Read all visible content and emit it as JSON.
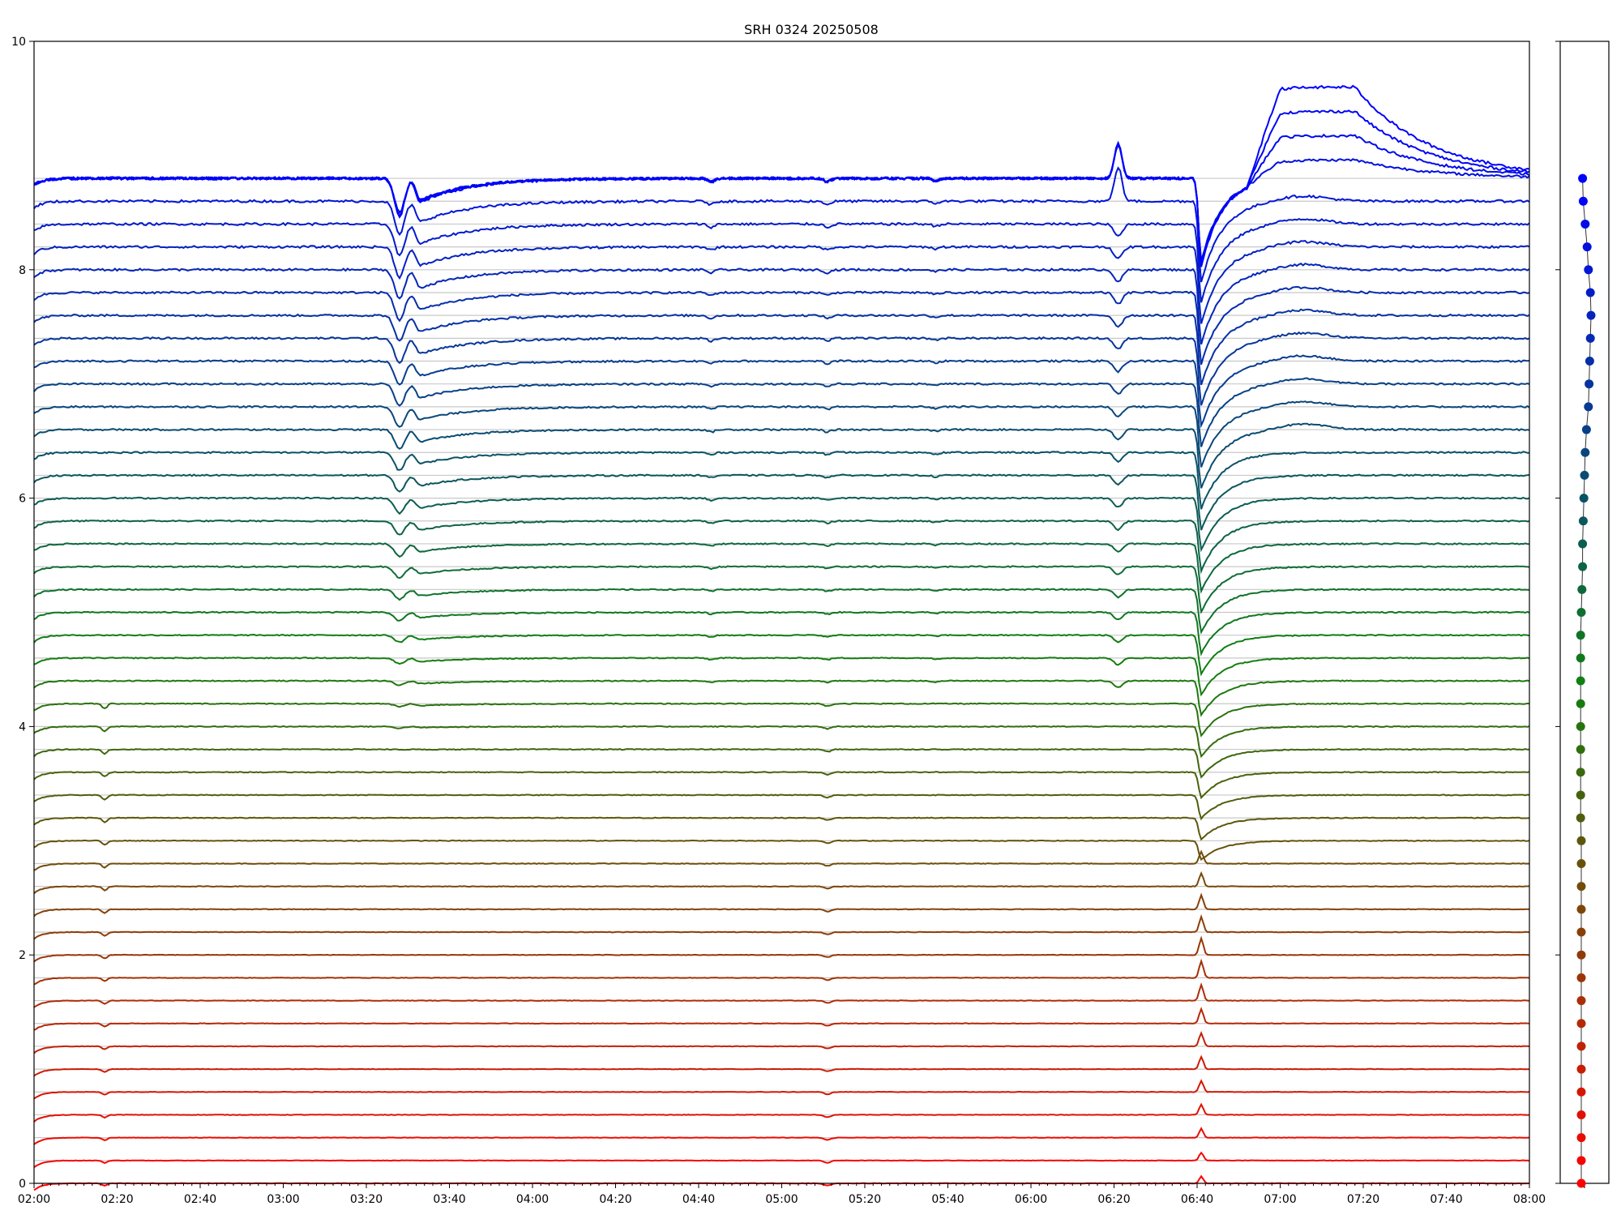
{
  "chart_data": [
    {
      "type": "line",
      "title": "SRH 0324 20250508",
      "xlabel": "",
      "ylabel": "",
      "x_tick_labels": [
        "02:00",
        "02:20",
        "02:40",
        "03:00",
        "03:20",
        "03:40",
        "04:00",
        "04:20",
        "04:40",
        "05:00",
        "05:20",
        "05:40",
        "06:00",
        "06:20",
        "06:40",
        "07:00",
        "07:20",
        "07:40",
        "08:00"
      ],
      "y_tick_labels": [
        "0",
        "2",
        "4",
        "6",
        "8",
        "10"
      ],
      "y_ticks": [
        0,
        2,
        4,
        6,
        8,
        10
      ],
      "xlim_minutes": [
        0,
        360
      ],
      "ylim": [
        0,
        10
      ],
      "grid": "horizontal baseline per channel",
      "legend": "none",
      "channel_count": 48,
      "channel_offsets": [
        0.0,
        0.2,
        0.4,
        0.6,
        0.8,
        1.0,
        1.2,
        1.4,
        1.6,
        1.8,
        2.0,
        2.2,
        2.4,
        2.6,
        2.8,
        3.0,
        3.2,
        3.4,
        3.6,
        3.8,
        4.0,
        4.2,
        4.4,
        4.6,
        4.8,
        5.0,
        5.2,
        5.4,
        5.6,
        5.8,
        6.0,
        6.2,
        6.4,
        6.6,
        6.8,
        7.0,
        7.2,
        7.4,
        7.6,
        7.8,
        8.0,
        8.2,
        8.4,
        8.6,
        8.8,
        8.8,
        8.8,
        8.8
      ],
      "color_start": "#ff0000",
      "color_end": "#0000ff",
      "events_minutes": {
        "dip_0217": 17,
        "dip_0328": 88,
        "dip_0333": 93,
        "dip_0443": 163,
        "dip_0511": 191,
        "dip_0537": 217,
        "spike_0621": 261,
        "burst_0641": 281,
        "rise_0705_peak": 305,
        "end_0800": 360
      }
    },
    {
      "type": "scatter",
      "title": "",
      "xlabel": "",
      "ylabel": "",
      "ylim": [
        0,
        10
      ],
      "marker_values": [
        0.0,
        0.2,
        0.4,
        0.6,
        0.8,
        1.0,
        1.2,
        1.4,
        1.6,
        1.8,
        2.0,
        2.2,
        2.4,
        2.6,
        2.8,
        3.0,
        3.2,
        3.4,
        3.6,
        3.8,
        4.0,
        4.2,
        4.4,
        4.6,
        4.8,
        5.0,
        5.2,
        5.4,
        5.6,
        5.8,
        6.0,
        6.2,
        6.4,
        6.6,
        6.8,
        7.0,
        7.2,
        7.4,
        7.6,
        7.8,
        8.0,
        8.2,
        8.4,
        8.6,
        8.8
      ],
      "marker_horizontal_index": [
        0.0,
        0.0,
        0.0,
        0.0,
        0.0,
        0.0,
        0.0,
        0.0,
        0.0,
        0.0,
        0.0,
        0.0,
        0.0,
        0.0,
        0.0,
        0.0,
        -0.05,
        -0.05,
        -0.05,
        -0.05,
        -0.05,
        -0.05,
        -0.05,
        -0.05,
        -0.05,
        0.0,
        0.05,
        0.1,
        0.1,
        0.15,
        0.2,
        0.25,
        0.3,
        0.4,
        0.55,
        0.6,
        0.65,
        0.7,
        0.75,
        0.7,
        0.55,
        0.45,
        0.3,
        0.15,
        0.1
      ]
    }
  ]
}
